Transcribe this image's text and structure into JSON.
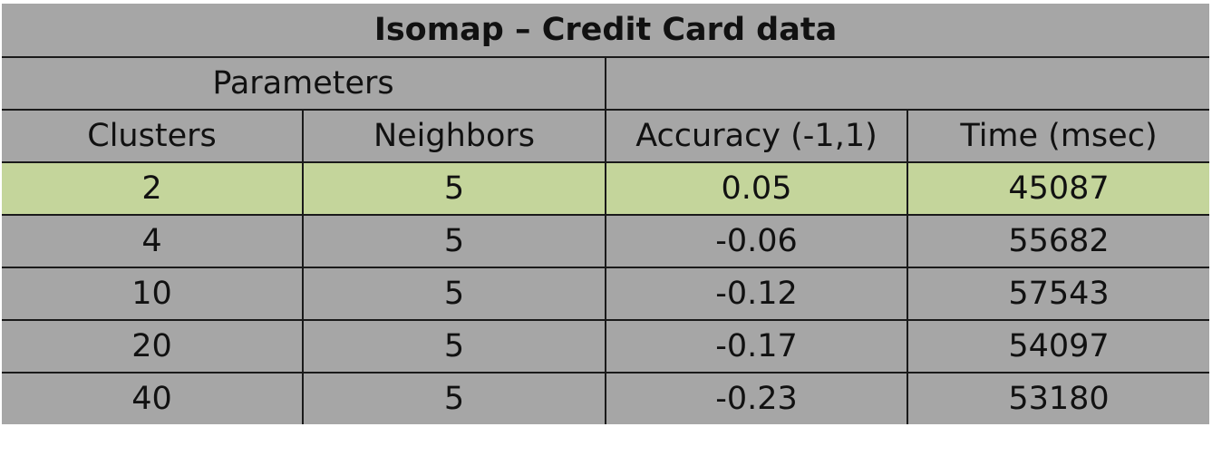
{
  "table": {
    "title": "Isomap – Credit Card data",
    "group_header": "Parameters",
    "group_header_empty": "",
    "columns": [
      "Clusters",
      "Neighbors",
      "Accuracy (-1,1)",
      "Time (msec)"
    ],
    "rows": [
      {
        "clusters": "2",
        "neighbors": "5",
        "accuracy": "0.05",
        "time": "45087"
      },
      {
        "clusters": "4",
        "neighbors": "5",
        "accuracy": "-0.06",
        "time": "55682"
      },
      {
        "clusters": "10",
        "neighbors": "5",
        "accuracy": "-0.12",
        "time": "57543"
      },
      {
        "clusters": "20",
        "neighbors": "5",
        "accuracy": "-0.17",
        "time": "54097"
      },
      {
        "clusters": "40",
        "neighbors": "5",
        "accuracy": "-0.23",
        "time": "53180"
      }
    ],
    "highlight_color": "#c4d59b",
    "cell_color": "#a6a6a6",
    "border_color": "#1a1a1a"
  }
}
